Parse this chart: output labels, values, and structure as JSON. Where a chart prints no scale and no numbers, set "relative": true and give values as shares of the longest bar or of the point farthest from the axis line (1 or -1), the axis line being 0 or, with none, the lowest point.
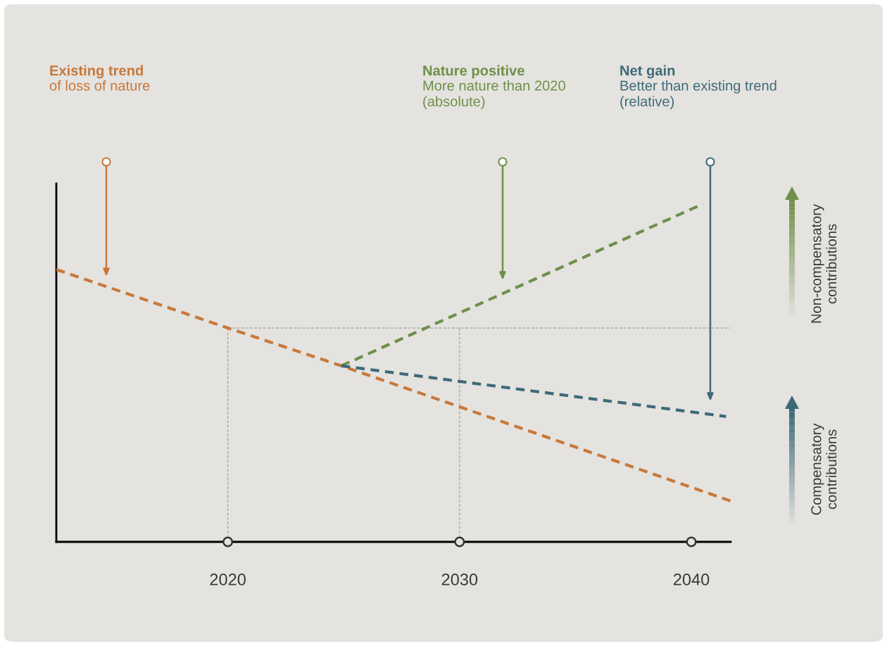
{
  "chart_data": {
    "type": "line",
    "relative": true,
    "line_style": "dashed",
    "marker": "none",
    "grid": false,
    "tick_labels": "x",
    "xlim": [
      2012.6,
      2041.7
    ],
    "xticks": [
      2020,
      2030,
      2040
    ],
    "series": [
      {
        "color": "#c8783a",
        "x": [
          2012.6,
          2020,
          2024.9,
          2041.7
        ],
        "values": [
          0.806,
          0.633,
          0.521,
          0.121
        ]
      },
      {
        "color": "#6f8f4a",
        "x": [
          2024.9,
          2040.5
        ],
        "values": [
          0.521,
          1.0
        ]
      },
      {
        "color": "#3e6a78",
        "x": [
          2024.9,
          2041.5
        ],
        "values": [
          0.521,
          0.371
        ]
      }
    ],
    "ref_lines": [
      {
        "axis": "y",
        "value": 0.633,
        "color": "#a0a0a0",
        "line_style": "dashed"
      },
      {
        "axis": "x",
        "value": 2020,
        "color": "#a0a0a0",
        "line_style": "dashed"
      },
      {
        "axis": "x",
        "value": 2030,
        "color": "#a0a0a0",
        "line_style": "dashed"
      }
    ],
    "annotations": [
      "Existing trend\nof loss of nature",
      "Nature positive\nMore nature than 2020\n(absolute)",
      "Net gain\nBetter than existing trend\n(relative)",
      "Non-compensatory\ncontributions",
      "Compensatory\ncontributions"
    ]
  }
}
